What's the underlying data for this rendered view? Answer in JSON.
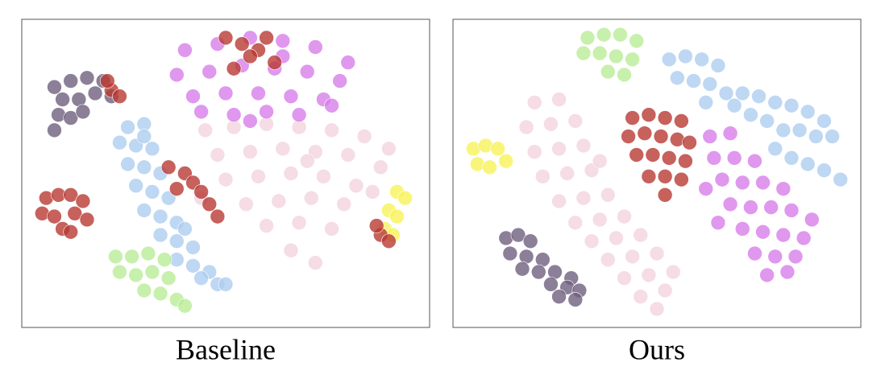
{
  "chart_data": [
    {
      "type": "scatter",
      "title": "Baseline",
      "xlim": [
        0,
        100
      ],
      "ylim": [
        100,
        0
      ],
      "series": [
        {
          "color": "#f2d3df",
          "x": [
            45,
            52,
            60,
            68,
            76,
            84,
            90,
            48,
            56,
            64,
            72,
            80,
            88,
            50,
            58,
            66,
            74,
            82,
            55,
            63,
            71,
            79,
            60,
            68,
            76,
            66,
            72,
            44,
            86,
            70
          ],
          "values": [
            36,
            35,
            34,
            35,
            36,
            38,
            42,
            44,
            43,
            42,
            43,
            44,
            48,
            52,
            51,
            50,
            51,
            54,
            60,
            59,
            58,
            60,
            67,
            66,
            68,
            75,
            79,
            58,
            56,
            46
          ]
        },
        {
          "color": "#d77ee8",
          "x": [
            40,
            48,
            56,
            64,
            72,
            80,
            38,
            46,
            54,
            62,
            70,
            78,
            42,
            50,
            58,
            66,
            74,
            44,
            52,
            60,
            68,
            76,
            56,
            64
          ],
          "values": [
            10,
            8,
            6,
            7,
            9,
            14,
            18,
            17,
            15,
            16,
            17,
            20,
            25,
            24,
            24,
            25,
            26,
            30,
            31,
            30,
            31,
            28,
            33,
            12
          ]
        },
        {
          "color": "#b83a33",
          "x": [
            50,
            54,
            58,
            56,
            60,
            62,
            52
          ],
          "values": [
            6,
            8,
            10,
            12,
            6,
            14,
            16
          ]
        },
        {
          "color": "#6f5f7e",
          "x": [
            8,
            12,
            16,
            20,
            10,
            14,
            18,
            22,
            9,
            12,
            8,
            15
          ],
          "values": [
            22,
            20,
            19,
            20,
            26,
            26,
            24,
            25,
            31,
            32,
            36,
            30
          ]
        },
        {
          "color": "#b83a33",
          "x": [
            22,
            24,
            21
          ],
          "values": [
            23,
            25,
            20
          ]
        },
        {
          "color": "#aecdf0",
          "x": [
            26,
            30,
            24,
            28,
            32,
            26,
            30,
            34,
            28,
            32,
            36,
            30,
            34,
            38,
            34,
            38,
            42,
            38,
            42,
            46,
            44,
            48,
            50,
            40,
            30
          ],
          "values": [
            35,
            34,
            40,
            41,
            42,
            47,
            48,
            50,
            54,
            56,
            58,
            62,
            64,
            66,
            70,
            72,
            74,
            78,
            80,
            82,
            84,
            86,
            86,
            68,
            38
          ]
        },
        {
          "color": "#b83a33",
          "x": [
            36,
            40,
            42,
            38,
            44,
            46,
            48
          ],
          "values": [
            48,
            50,
            53,
            55,
            56,
            60,
            64
          ]
        },
        {
          "color": "#b83a33",
          "x": [
            6,
            9,
            12,
            15,
            5,
            8,
            13,
            16,
            10,
            12
          ],
          "values": [
            58,
            57,
            57,
            59,
            63,
            64,
            63,
            65,
            68,
            69
          ]
        },
        {
          "color": "#b9ec97",
          "x": [
            23,
            27,
            31,
            35,
            24,
            28,
            32,
            36,
            30,
            34,
            38,
            40
          ],
          "values": [
            77,
            77,
            76,
            78,
            82,
            83,
            82,
            84,
            88,
            89,
            91,
            93
          ]
        },
        {
          "color": "#f7f35a",
          "x": [
            92,
            94,
            90,
            92,
            89,
            91
          ],
          "values": [
            56,
            58,
            62,
            64,
            68,
            70
          ]
        },
        {
          "color": "#b83a33",
          "x": [
            88,
            90,
            87
          ],
          "values": [
            70,
            72,
            67
          ]
        }
      ]
    },
    {
      "type": "scatter",
      "title": "Ours",
      "xlim": [
        0,
        100
      ],
      "ylim": [
        100,
        0
      ],
      "series": [
        {
          "color": "#b9ec97",
          "x": [
            33,
            37,
            41,
            45,
            32,
            36,
            40,
            44,
            38,
            42
          ],
          "values": [
            6,
            5,
            5,
            7,
            11,
            11,
            12,
            13,
            17,
            18
          ]
        },
        {
          "color": "#aecdf0",
          "x": [
            53,
            57,
            61,
            65,
            55,
            59,
            63,
            67,
            71,
            75,
            79,
            83,
            87,
            91,
            73,
            77,
            81,
            85,
            89,
            93,
            79,
            83,
            87,
            91,
            95,
            62,
            69
          ],
          "values": [
            13,
            12,
            13,
            15,
            19,
            20,
            21,
            24,
            24,
            25,
            27,
            28,
            30,
            33,
            31,
            33,
            36,
            36,
            38,
            38,
            42,
            45,
            47,
            49,
            52,
            27,
            28
          ]
        },
        {
          "color": "#f2d3df",
          "x": [
            20,
            26,
            18,
            24,
            30,
            20,
            26,
            32,
            22,
            28,
            34,
            26,
            32,
            38,
            30,
            36,
            42,
            34,
            40,
            46,
            38,
            44,
            50,
            42,
            48,
            54,
            46,
            52,
            50,
            36
          ],
          "values": [
            27,
            26,
            35,
            34,
            33,
            43,
            42,
            41,
            51,
            50,
            49,
            59,
            58,
            57,
            66,
            65,
            64,
            72,
            71,
            70,
            78,
            77,
            76,
            84,
            83,
            82,
            90,
            88,
            94,
            46
          ]
        },
        {
          "color": "#b83a33",
          "x": [
            44,
            48,
            52,
            56,
            43,
            47,
            51,
            55,
            58,
            45,
            49,
            53,
            57,
            48,
            52,
            56,
            52
          ],
          "values": [
            32,
            31,
            32,
            33,
            38,
            37,
            38,
            39,
            40,
            44,
            44,
            45,
            46,
            51,
            51,
            52,
            57
          ]
        },
        {
          "color": "#d77ee8",
          "x": [
            63,
            68,
            64,
            69,
            74,
            66,
            71,
            76,
            81,
            68,
            73,
            78,
            83,
            88,
            71,
            76,
            81,
            86,
            74,
            79,
            84,
            77,
            82,
            62,
            65
          ],
          "values": [
            38,
            37,
            45,
            45,
            46,
            52,
            53,
            53,
            55,
            60,
            61,
            61,
            62,
            65,
            68,
            69,
            70,
            71,
            76,
            77,
            77,
            83,
            82,
            55,
            66
          ]
        },
        {
          "color": "#f7f35a",
          "x": [
            5,
            8,
            11,
            6,
            9,
            13
          ],
          "values": [
            42,
            41,
            42,
            47,
            48,
            46
          ]
        },
        {
          "color": "#6f5f7e",
          "x": [
            13,
            16,
            19,
            14,
            18,
            22,
            17,
            21,
            25,
            29,
            24,
            28,
            31,
            26,
            30
          ],
          "values": [
            71,
            70,
            72,
            76,
            77,
            78,
            81,
            82,
            82,
            84,
            86,
            87,
            88,
            90,
            91
          ]
        }
      ]
    }
  ]
}
